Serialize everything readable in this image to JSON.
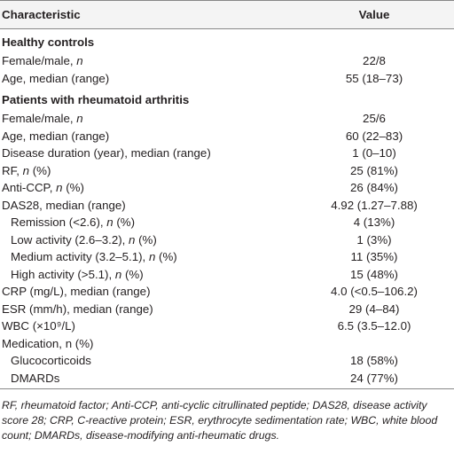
{
  "table": {
    "columns": [
      "Characteristic",
      "Value"
    ],
    "sections": [
      {
        "title": "Healthy controls",
        "rows": [
          {
            "label": [
              {
                "text": "Female/male, "
              },
              {
                "text": "n",
                "italic": true
              }
            ],
            "value": "22/8"
          },
          {
            "label": [
              {
                "text": "Age, median (range)"
              }
            ],
            "value": "55 (18–73)"
          }
        ]
      },
      {
        "title": "Patients with rheumatoid arthritis",
        "rows": [
          {
            "label": [
              {
                "text": "Female/male, "
              },
              {
                "text": "n",
                "italic": true
              }
            ],
            "value": "25/6"
          },
          {
            "label": [
              {
                "text": "Age, median (range)"
              }
            ],
            "value": "60 (22–83)"
          },
          {
            "label": [
              {
                "text": "Disease duration (year), median (range)"
              }
            ],
            "value": "1 (0–10)"
          },
          {
            "label": [
              {
                "text": "RF, "
              },
              {
                "text": "n",
                "italic": true
              },
              {
                "text": " (%)"
              }
            ],
            "value": "25 (81%)"
          },
          {
            "label": [
              {
                "text": "Anti-CCP, "
              },
              {
                "text": "n",
                "italic": true
              },
              {
                "text": " (%)"
              }
            ],
            "value": "26 (84%)"
          },
          {
            "label": [
              {
                "text": "DAS28, median (range)"
              }
            ],
            "value": "4.92 (1.27–7.88)"
          },
          {
            "label": [
              {
                "text": "Remission (<2.6), "
              },
              {
                "text": "n",
                "italic": true
              },
              {
                "text": " (%)"
              }
            ],
            "value": "4 (13%)",
            "indent": 1
          },
          {
            "label": [
              {
                "text": "Low activity (2.6–3.2), "
              },
              {
                "text": "n",
                "italic": true
              },
              {
                "text": " (%)"
              }
            ],
            "value": "1 (3%)",
            "indent": 1
          },
          {
            "label": [
              {
                "text": "Medium activity (3.2–5.1), "
              },
              {
                "text": "n",
                "italic": true
              },
              {
                "text": " (%)"
              }
            ],
            "value": "11 (35%)",
            "indent": 1
          },
          {
            "label": [
              {
                "text": "High activity (>5.1), "
              },
              {
                "text": "n",
                "italic": true
              },
              {
                "text": " (%)"
              }
            ],
            "value": "15 (48%)",
            "indent": 1
          },
          {
            "label": [
              {
                "text": "CRP (mg/L), median (range)"
              }
            ],
            "value": "4.0 (<0.5–106.2)"
          },
          {
            "label": [
              {
                "text": "ESR (mm/h), median (range)"
              }
            ],
            "value": "29 (4–84)"
          },
          {
            "label": [
              {
                "text": "WBC (×10⁹/L)"
              }
            ],
            "value": "6.5 (3.5–12.0)"
          },
          {
            "label": [
              {
                "text": "Medication, n (%)"
              }
            ],
            "value": ""
          },
          {
            "label": [
              {
                "text": "Glucocorticoids"
              }
            ],
            "value": "18 (58%)",
            "indent": 1
          },
          {
            "label": [
              {
                "text": "DMARDs"
              }
            ],
            "value": "24 (77%)",
            "indent": 1
          }
        ]
      }
    ]
  },
  "footnote": "RF, rheumatoid factor; Anti-CCP, anti-cyclic citrullinated peptide; DAS28, disease activity score 28; CRP, C-reactive protein; ESR, erythrocyte sedimentation rate; WBC, white blood count; DMARDs, disease-modifying anti-rheumatic drugs."
}
